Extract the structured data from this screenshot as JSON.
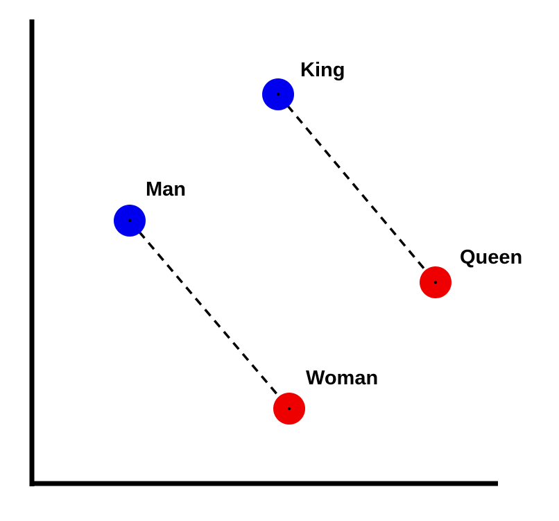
{
  "diagram": {
    "points": [
      {
        "id": "king",
        "label": "King",
        "group": "male",
        "color": "#0000ee"
      },
      {
        "id": "queen",
        "label": "Queen",
        "group": "female",
        "color": "#ee0000"
      },
      {
        "id": "man",
        "label": "Man",
        "group": "male",
        "color": "#0000ee"
      },
      {
        "id": "woman",
        "label": "Woman",
        "group": "female",
        "color": "#ee0000"
      }
    ],
    "links": [
      {
        "from": "king",
        "to": "queen",
        "style": "dashed"
      },
      {
        "from": "man",
        "to": "woman",
        "style": "dashed"
      }
    ],
    "axis_color": "#000000",
    "link_color": "#000000"
  }
}
